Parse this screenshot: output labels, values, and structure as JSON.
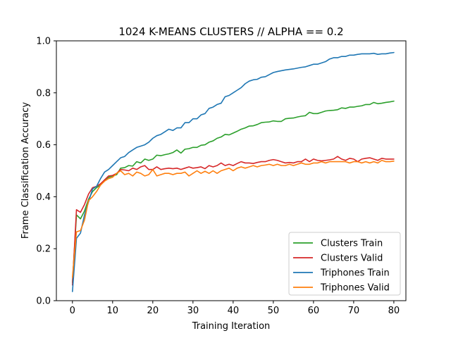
{
  "chart_data": {
    "type": "line",
    "title": "1024 K-MEANS CLUSTERS // ALPHA == 0.2",
    "xlabel": "Training Iteration",
    "ylabel": "Frame Classification Accuracy",
    "xlim": [
      -4,
      83
    ],
    "ylim": [
      0.0,
      1.0
    ],
    "xticks": [
      "0",
      "10",
      "20",
      "30",
      "40",
      "50",
      "60",
      "70",
      "80"
    ],
    "yticks": [
      "0.0",
      "0.2",
      "0.4",
      "0.6",
      "0.8",
      "1.0"
    ],
    "grid": false,
    "legend_position": "lower-right",
    "series": [
      {
        "name": "Clusters Train",
        "color": "#2ca02c",
        "values": [
          0.07,
          0.33,
          0.315,
          0.345,
          0.39,
          0.42,
          0.435,
          0.445,
          0.465,
          0.475,
          0.48,
          0.485,
          0.51,
          0.512,
          0.52,
          0.518,
          0.535,
          0.53,
          0.545,
          0.54,
          0.545,
          0.56,
          0.558,
          0.562,
          0.565,
          0.57,
          0.58,
          0.568,
          0.583,
          0.585,
          0.59,
          0.59,
          0.598,
          0.6,
          0.61,
          0.615,
          0.625,
          0.63,
          0.64,
          0.638,
          0.645,
          0.652,
          0.66,
          0.665,
          0.672,
          0.673,
          0.678,
          0.685,
          0.687,
          0.688,
          0.692,
          0.69,
          0.69,
          0.7,
          0.702,
          0.703,
          0.707,
          0.71,
          0.712,
          0.725,
          0.72,
          0.72,
          0.725,
          0.73,
          0.732,
          0.733,
          0.735,
          0.742,
          0.74,
          0.745,
          0.745,
          0.748,
          0.75,
          0.755,
          0.755,
          0.763,
          0.758,
          0.76,
          0.763,
          0.765,
          0.768
        ]
      },
      {
        "name": "Clusters Valid",
        "color": "#d62728",
        "values": [
          0.06,
          0.35,
          0.34,
          0.37,
          0.41,
          0.435,
          0.44,
          0.45,
          0.465,
          0.48,
          0.482,
          0.49,
          0.505,
          0.503,
          0.5,
          0.51,
          0.505,
          0.515,
          0.52,
          0.505,
          0.505,
          0.515,
          0.505,
          0.508,
          0.51,
          0.508,
          0.51,
          0.505,
          0.51,
          0.515,
          0.51,
          0.512,
          0.515,
          0.508,
          0.52,
          0.515,
          0.52,
          0.53,
          0.52,
          0.525,
          0.52,
          0.528,
          0.535,
          0.53,
          0.53,
          0.528,
          0.532,
          0.535,
          0.535,
          0.54,
          0.543,
          0.54,
          0.535,
          0.53,
          0.532,
          0.53,
          0.535,
          0.535,
          0.545,
          0.535,
          0.545,
          0.54,
          0.538,
          0.54,
          0.542,
          0.545,
          0.555,
          0.545,
          0.54,
          0.548,
          0.545,
          0.535,
          0.545,
          0.548,
          0.55,
          0.545,
          0.54,
          0.548,
          0.545,
          0.545,
          0.545
        ]
      },
      {
        "name": "Triphones Train",
        "color": "#1f77b4",
        "values": [
          0.035,
          0.24,
          0.26,
          0.33,
          0.38,
          0.43,
          0.44,
          0.47,
          0.495,
          0.505,
          0.52,
          0.535,
          0.55,
          0.555,
          0.57,
          0.58,
          0.59,
          0.595,
          0.6,
          0.61,
          0.625,
          0.635,
          0.64,
          0.65,
          0.66,
          0.655,
          0.665,
          0.665,
          0.685,
          0.685,
          0.7,
          0.7,
          0.715,
          0.72,
          0.74,
          0.745,
          0.755,
          0.76,
          0.785,
          0.79,
          0.8,
          0.81,
          0.82,
          0.835,
          0.845,
          0.85,
          0.852,
          0.86,
          0.862,
          0.87,
          0.878,
          0.882,
          0.885,
          0.888,
          0.89,
          0.892,
          0.895,
          0.898,
          0.9,
          0.905,
          0.91,
          0.91,
          0.915,
          0.92,
          0.93,
          0.935,
          0.935,
          0.94,
          0.94,
          0.945,
          0.945,
          0.948,
          0.95,
          0.95,
          0.95,
          0.952,
          0.948,
          0.95,
          0.95,
          0.953,
          0.955
        ]
      },
      {
        "name": "Triphones Valid",
        "color": "#ff7f0e",
        "values": [
          0.09,
          0.265,
          0.27,
          0.31,
          0.385,
          0.4,
          0.42,
          0.445,
          0.46,
          0.47,
          0.475,
          0.49,
          0.5,
          0.485,
          0.49,
          0.48,
          0.495,
          0.49,
          0.48,
          0.485,
          0.505,
          0.48,
          0.485,
          0.49,
          0.49,
          0.485,
          0.49,
          0.49,
          0.495,
          0.48,
          0.49,
          0.5,
          0.49,
          0.498,
          0.49,
          0.5,
          0.49,
          0.5,
          0.505,
          0.51,
          0.5,
          0.51,
          0.515,
          0.51,
          0.515,
          0.52,
          0.515,
          0.52,
          0.522,
          0.525,
          0.52,
          0.525,
          0.52,
          0.52,
          0.525,
          0.52,
          0.525,
          0.53,
          0.525,
          0.525,
          0.53,
          0.53,
          0.535,
          0.53,
          0.535,
          0.535,
          0.535,
          0.535,
          0.535,
          0.53,
          0.535,
          0.535,
          0.53,
          0.535,
          0.53,
          0.535,
          0.53,
          0.54,
          0.535,
          0.535,
          0.537
        ]
      }
    ]
  }
}
